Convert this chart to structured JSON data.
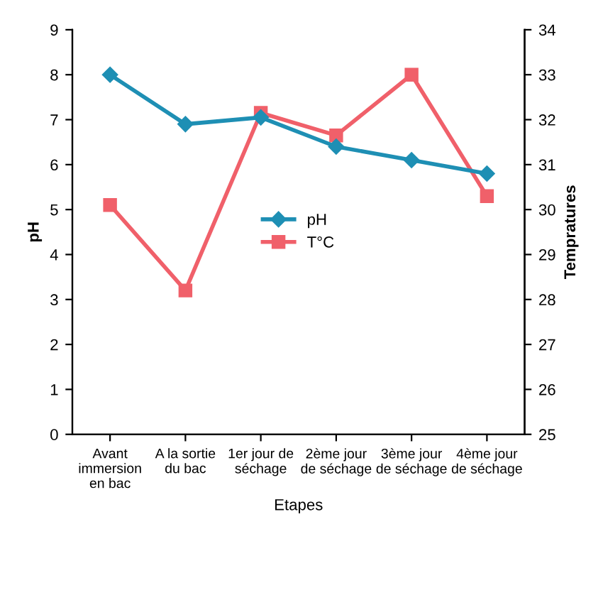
{
  "chart_data": {
    "type": "line",
    "xlabel": "Etapes",
    "ylabel": "pH",
    "y2label": "Tempratures",
    "categories": [
      "Avant\nimmersion\nen bac",
      "A la sortie\ndu bac",
      "1er jour de\nséchage",
      "2ème jour\nde séchage",
      "3ème jour\nde séchage",
      "4ème jour\nde séchage"
    ],
    "series": [
      {
        "name": "pH",
        "color": "#1e8fb4",
        "marker": "diamond",
        "values": [
          8.0,
          6.9,
          7.05,
          6.4,
          6.1,
          5.8
        ]
      },
      {
        "name": "T°C",
        "color": "#f0606a",
        "marker": "square",
        "axis": "y2",
        "values": [
          30.1,
          28.2,
          32.15,
          31.65,
          33.0,
          30.3
        ]
      }
    ],
    "ylim": [
      0,
      9
    ],
    "yticks": [
      0,
      1,
      2,
      3,
      4,
      5,
      6,
      7,
      8,
      9
    ],
    "y2lim": [
      25,
      34
    ],
    "y2ticks": [
      25,
      26,
      27,
      28,
      29,
      30,
      31,
      32,
      33,
      34
    ],
    "grid": false,
    "legend": "center"
  }
}
